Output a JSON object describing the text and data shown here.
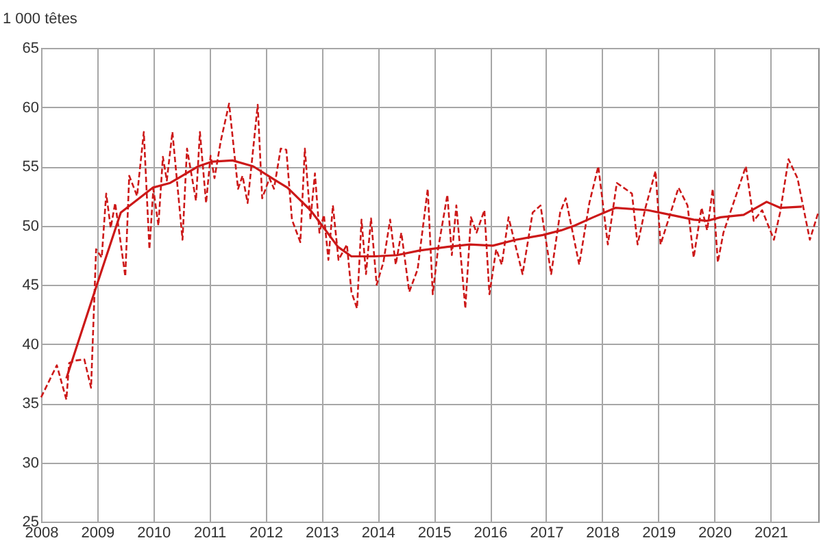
{
  "chart_data": {
    "type": "line",
    "ylabel": "1 000 têtes",
    "xlim": [
      2008,
      2021.85
    ],
    "xticks": [
      2008,
      2009,
      2010,
      2011,
      2012,
      2013,
      2014,
      2015,
      2016,
      2017,
      2018,
      2019,
      2020,
      2021
    ],
    "ylim": [
      25,
      65
    ],
    "yticks": [
      25,
      30,
      35,
      40,
      45,
      50,
      55,
      60,
      65
    ],
    "grid": true,
    "marker": "none",
    "series": [
      {
        "color": "#cc1818",
        "line_style": "dashed",
        "x": [
          2008.0,
          2008.28,
          2008.45,
          2008.5,
          2008.61,
          2008.77,
          2008.89,
          2008.98,
          2009.08,
          2009.16,
          2009.24,
          2009.32,
          2009.5,
          2009.57,
          2009.71,
          2009.83,
          2009.93,
          2010.0,
          2010.09,
          2010.17,
          2010.24,
          2010.34,
          2010.52,
          2010.6,
          2010.76,
          2010.83,
          2010.94,
          2011.02,
          2011.09,
          2011.2,
          2011.35,
          2011.51,
          2011.59,
          2011.68,
          2011.86,
          2011.94,
          2012.07,
          2012.15,
          2012.27,
          2012.37,
          2012.47,
          2012.62,
          2012.7,
          2012.8,
          2012.88,
          2012.96,
          2013.04,
          2013.12,
          2013.2,
          2013.3,
          2013.45,
          2013.53,
          2013.63,
          2013.71,
          2013.79,
          2013.88,
          2013.98,
          2014.1,
          2014.22,
          2014.32,
          2014.42,
          2014.56,
          2014.71,
          2014.89,
          2014.98,
          2015.07,
          2015.24,
          2015.32,
          2015.4,
          2015.56,
          2015.66,
          2015.76,
          2015.9,
          2015.99,
          2016.11,
          2016.21,
          2016.33,
          2016.58,
          2016.76,
          2016.9,
          2017.09,
          2017.25,
          2017.35,
          2017.59,
          2017.77,
          2017.93,
          2018.1,
          2018.26,
          2018.53,
          2018.63,
          2018.77,
          2018.95,
          2019.04,
          2019.36,
          2019.52,
          2019.63,
          2019.77,
          2019.87,
          2019.97,
          2020.06,
          2020.16,
          2020.56,
          2020.7,
          2020.85,
          2021.06,
          2021.17,
          2021.32,
          2021.48,
          2021.7,
          2021.85
        ],
        "values": [
          35.5,
          38.2,
          35.3,
          38.4,
          38.6,
          38.7,
          36.3,
          48.0,
          47.3,
          52.7,
          49.8,
          51.9,
          45.7,
          54.2,
          52.5,
          57.9,
          48.0,
          53.1,
          50.0,
          55.8,
          53.8,
          57.9,
          48.8,
          56.5,
          52.1,
          57.9,
          51.9,
          55.9,
          54.0,
          57.1,
          60.3,
          53.1,
          54.2,
          51.9,
          60.2,
          52.3,
          54.0,
          53.1,
          56.5,
          56.4,
          50.5,
          48.6,
          56.5,
          50.5,
          54.4,
          49.4,
          50.9,
          47.1,
          51.7,
          47.1,
          48.4,
          44.4,
          43.0,
          50.5,
          45.9,
          50.6,
          45.0,
          46.9,
          50.5,
          46.7,
          49.4,
          44.4,
          46.3,
          53.1,
          44.2,
          47.9,
          52.6,
          47.5,
          51.7,
          43.0,
          50.7,
          49.4,
          51.3,
          44.2,
          48.0,
          46.7,
          50.7,
          45.9,
          51.1,
          51.7,
          45.9,
          51.1,
          52.3,
          46.7,
          51.9,
          55.0,
          48.4,
          53.6,
          52.7,
          48.4,
          51.5,
          54.6,
          48.4,
          53.2,
          51.7,
          47.3,
          51.5,
          49.6,
          53.1,
          46.9,
          49.4,
          55.0,
          50.4,
          51.3,
          48.8,
          51.1,
          55.6,
          54.0,
          48.8,
          51.1
        ]
      },
      {
        "color": "#cc1818",
        "line_style": "solid",
        "x": [
          2008.45,
          2008.98,
          2009.42,
          2009.99,
          2010.3,
          2010.8,
          2011.05,
          2011.41,
          2011.78,
          2012.15,
          2012.39,
          2012.8,
          2013.04,
          2013.29,
          2013.53,
          2013.94,
          2014.34,
          2014.75,
          2015.24,
          2015.64,
          2016.05,
          2016.46,
          2016.94,
          2017.27,
          2017.51,
          2017.84,
          2018.24,
          2018.81,
          2019.22,
          2019.63,
          2019.87,
          2020.11,
          2020.52,
          2020.93,
          2021.17,
          2021.56
        ],
        "values": [
          37.1,
          44.8,
          51.1,
          53.2,
          53.6,
          55.0,
          55.4,
          55.5,
          55.0,
          53.9,
          53.2,
          51.3,
          49.8,
          48.2,
          47.4,
          47.4,
          47.5,
          47.9,
          48.2,
          48.4,
          48.3,
          48.8,
          49.2,
          49.6,
          50.0,
          50.7,
          51.5,
          51.3,
          50.9,
          50.5,
          50.4,
          50.7,
          50.9,
          52.0,
          51.5,
          51.6
        ]
      }
    ]
  }
}
